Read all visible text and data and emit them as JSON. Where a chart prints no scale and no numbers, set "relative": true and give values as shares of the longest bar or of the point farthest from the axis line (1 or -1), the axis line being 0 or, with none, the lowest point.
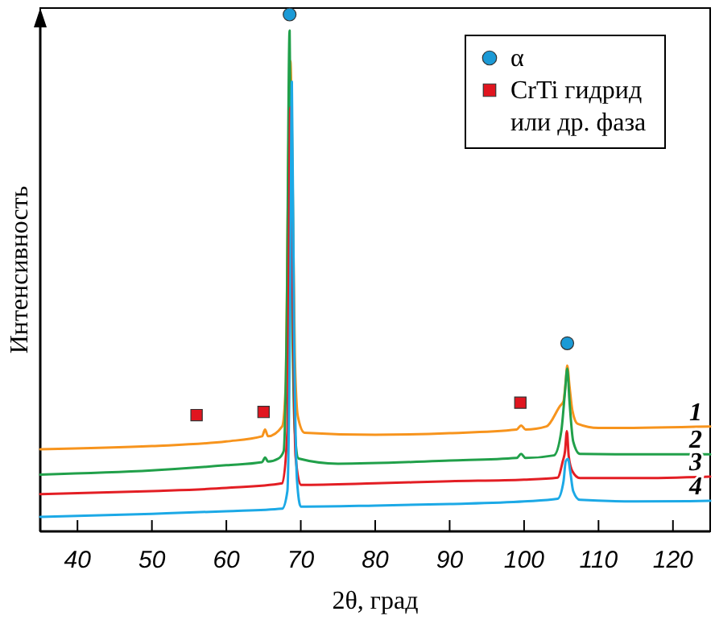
{
  "chart_data": {
    "type": "line",
    "relative": true,
    "xlabel": "2θ, град",
    "ylabel": "Интенсивность",
    "xlim": [
      35,
      125
    ],
    "xticks": [
      40,
      50,
      60,
      70,
      80,
      90,
      100,
      110,
      120
    ],
    "legend": "top right",
    "series": [
      {
        "name": "1",
        "color": "#f7941d",
        "x": [
          35,
          50,
          60,
          64.8,
          65.2,
          65.6,
          67.5,
          68,
          68.3,
          68.6,
          68.9,
          69.2,
          69.6,
          70.5,
          80,
          90,
          99,
          99.6,
          100.2,
          103,
          104.8,
          105.3,
          105.6,
          105.8,
          106.1,
          106.5,
          107.2,
          110,
          125
        ],
        "values": [
          0.159,
          0.165,
          0.174,
          0.184,
          0.197,
          0.184,
          0.203,
          0.29,
          0.68,
          0.91,
          0.68,
          0.34,
          0.223,
          0.191,
          0.187,
          0.19,
          0.197,
          0.205,
          0.197,
          0.203,
          0.242,
          0.252,
          0.291,
          0.321,
          0.281,
          0.233,
          0.208,
          0.2,
          0.203
        ]
      },
      {
        "name": "2",
        "color": "#21a04a",
        "x": [
          35,
          50,
          60,
          64.8,
          65.2,
          65.6,
          67,
          67.7,
          68.1,
          68.5,
          68.8,
          69.2,
          69.7,
          75,
          90,
          99,
          99.6,
          100.2,
          104,
          105,
          105.5,
          105.8,
          106.1,
          106.6,
          107.5,
          115,
          125
        ],
        "values": [
          0.11,
          0.118,
          0.128,
          0.134,
          0.143,
          0.135,
          0.141,
          0.155,
          0.388,
          0.969,
          0.485,
          0.194,
          0.141,
          0.131,
          0.137,
          0.142,
          0.15,
          0.142,
          0.147,
          0.194,
          0.271,
          0.315,
          0.252,
          0.174,
          0.15,
          0.149,
          0.149
        ]
      },
      {
        "name": "3",
        "color": "#e31e24",
        "x": [
          35,
          50,
          60,
          67.5,
          68.2,
          68.6,
          68.9,
          69.3,
          70,
          80,
          90,
          100,
          104.5,
          105.2,
          105.5,
          105.75,
          106,
          106.5,
          107.5,
          115,
          125
        ],
        "values": [
          0.072,
          0.078,
          0.084,
          0.093,
          0.194,
          0.82,
          0.485,
          0.145,
          0.09,
          0.093,
          0.097,
          0.1,
          0.104,
          0.136,
          0.155,
          0.194,
          0.145,
          0.116,
          0.103,
          0.103,
          0.106
        ]
      },
      {
        "name": "4",
        "color": "#1ca9e6",
        "x": [
          35,
          50,
          60,
          67.5,
          68.2,
          68.6,
          68.8,
          69.1,
          69.5,
          70,
          80,
          90,
          100,
          104.5,
          105.3,
          105.6,
          105.9,
          106.2,
          106.6,
          107.5,
          115,
          125
        ],
        "values": [
          0.028,
          0.034,
          0.039,
          0.044,
          0.078,
          0.485,
          0.87,
          0.388,
          0.097,
          0.048,
          0.05,
          0.053,
          0.058,
          0.063,
          0.097,
          0.136,
          0.14,
          0.116,
          0.078,
          0.061,
          0.058,
          0.059
        ]
      },
      {
        "name": "α",
        "type": "scatter",
        "marker": "circle",
        "color": "#1b9ad6",
        "x": [
          68.5,
          105.8
        ],
        "values": [
          1.0,
          0.364
        ]
      },
      {
        "name": "CrTi гидрид или др. фаза",
        "type": "scatter",
        "marker": "square",
        "color": "#e0151f",
        "x": [
          56,
          65,
          99.5
        ],
        "values": [
          0.225,
          0.231,
          0.249
        ]
      }
    ]
  }
}
